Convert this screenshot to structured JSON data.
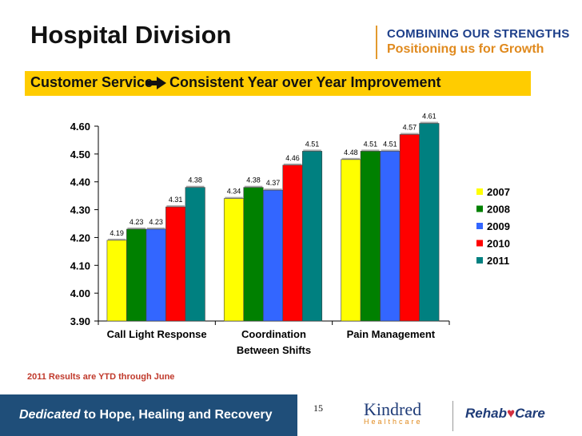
{
  "slide": {
    "title": "Hospital Division",
    "header_line1": "COMBINING OUR STRENGTHS",
    "header_line2": "Positioning us for Growth",
    "banner_left": "Customer Service",
    "banner_right": "Consistent Year over Year Improvement",
    "banner_arrow_icon": "arrow-right-icon",
    "footnote": "2011 Results are YTD through June",
    "tagline_italic": "Dedicated",
    "tagline_rest": " to Hope, Healing and Recovery",
    "page_number": "15",
    "logo_kindred": "Kindred",
    "logo_kindred_sub": "Healthcare",
    "logo_rehab_left": "Rehab",
    "logo_rehab_right": "Care"
  },
  "colors": {
    "banner": "#ffcc00",
    "footer": "#1f4e79",
    "series": [
      "#ffff00",
      "#008000",
      "#3366ff",
      "#ff0000",
      "#008080"
    ]
  },
  "chart_data": {
    "type": "bar",
    "categories": [
      [
        "Call Light Response"
      ],
      [
        "Coordination",
        "Between Shifts"
      ],
      [
        "Pain Management"
      ]
    ],
    "series": [
      {
        "name": "2007",
        "values": [
          4.19,
          4.34,
          4.48
        ]
      },
      {
        "name": "2008",
        "values": [
          4.23,
          4.38,
          4.51
        ]
      },
      {
        "name": "2009",
        "values": [
          4.23,
          4.37,
          4.51
        ]
      },
      {
        "name": "2010",
        "values": [
          4.31,
          4.46,
          4.57
        ]
      },
      {
        "name": "2011",
        "values": [
          4.38,
          4.51,
          4.61
        ]
      }
    ],
    "ylim": [
      3.9,
      4.6
    ],
    "yticks": [
      "3.90",
      "4.00",
      "4.10",
      "4.20",
      "4.30",
      "4.40",
      "4.50",
      "4.60"
    ],
    "legend_position": "right",
    "grid": false,
    "xlabel": "",
    "ylabel": ""
  }
}
